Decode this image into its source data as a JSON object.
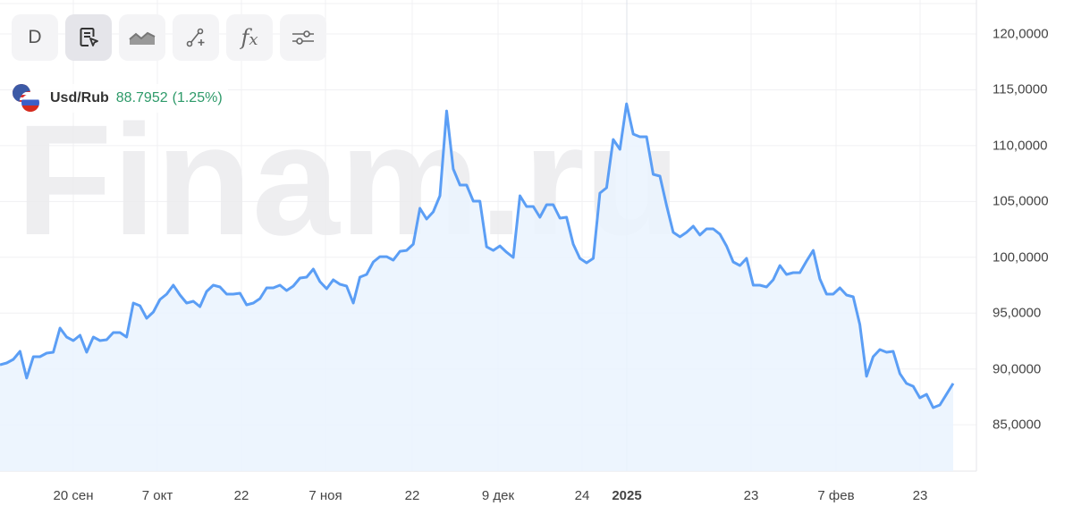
{
  "toolbar": {
    "period_label": "D",
    "buttons": [
      {
        "name": "period",
        "icon": "period-letter"
      },
      {
        "name": "cursor-mode",
        "icon": "document-cursor-icon",
        "selected": true
      },
      {
        "name": "chart-type",
        "icon": "area-chart-icon"
      },
      {
        "name": "drawing-tools",
        "icon": "line-plus-icon"
      },
      {
        "name": "indicators",
        "icon": "fx-icon"
      },
      {
        "name": "settings",
        "icon": "sliders-icon"
      }
    ]
  },
  "legend": {
    "symbol": "Usd/Rub",
    "value": "88.7952",
    "change": "(1.25%)",
    "value_color": "#2e9a6a"
  },
  "watermark": "Finam.ru",
  "colors": {
    "line": "#5b9ef5",
    "fill": "#eaf3fe",
    "grid": "#f0f0f3"
  },
  "chart_data": {
    "type": "area",
    "series": [
      {
        "name": "Usd/Rub",
        "values": [
          90.38,
          90.54,
          90.86,
          91.58,
          89.18,
          91.1,
          91.1,
          91.42,
          91.5,
          93.66,
          92.86,
          92.54,
          93.02,
          91.5,
          92.86,
          92.54,
          92.62,
          93.26,
          93.26,
          92.86,
          95.9,
          95.66,
          94.54,
          95.1,
          96.22,
          96.7,
          97.5,
          96.62,
          95.9,
          96.06,
          95.58,
          96.94,
          97.5,
          97.34,
          96.7,
          96.7,
          96.78,
          95.74,
          95.9,
          96.3,
          97.26,
          97.26,
          97.5,
          97.02,
          97.42,
          98.14,
          98.22,
          98.94,
          97.82,
          97.18,
          97.98,
          97.58,
          97.42,
          95.9,
          98.22,
          98.46,
          99.58,
          100.06,
          100.06,
          99.74,
          100.54,
          100.62,
          101.18,
          104.39,
          103.43,
          104.07,
          105.51,
          113.11,
          107.91,
          106.47,
          106.47,
          105.03,
          105.03,
          100.94,
          100.62,
          101.02,
          100.46,
          99.98,
          105.51,
          104.55,
          104.55,
          103.59,
          104.71,
          104.71,
          103.51,
          103.59,
          101.18,
          99.9,
          99.5,
          99.9,
          105.75,
          106.23,
          110.55,
          109.67,
          113.75,
          111.03,
          110.79,
          110.79,
          107.43,
          107.27,
          104.63,
          102.23,
          101.83,
          102.23,
          102.79,
          101.99,
          102.55,
          102.55,
          102.07,
          101.02,
          99.58,
          99.26,
          99.9,
          97.5,
          97.5,
          97.34,
          97.98,
          99.26,
          98.46,
          98.62,
          98.62,
          99.66,
          100.62,
          98.06,
          96.7,
          96.7,
          97.26,
          96.62,
          96.46,
          93.98,
          89.34,
          91.1,
          91.74,
          91.5,
          91.58,
          89.58,
          88.7,
          88.45,
          87.41,
          87.73,
          86.53,
          86.77,
          87.73,
          88.7
        ]
      }
    ],
    "x_tick_labels": [
      "20 сен",
      "7 окт",
      "22",
      "7 ноя",
      "22",
      "9 дек",
      "24",
      "2025",
      "23",
      "7 фев",
      "23"
    ],
    "y_tick_labels": [
      "120,0000",
      "115,0000",
      "110,0000",
      "105,0000",
      "100,0000",
      "95,0000",
      "90,0000",
      "85,0000"
    ],
    "y_ticks": [
      120,
      115,
      110,
      105,
      100,
      95,
      90,
      85
    ],
    "ylim": [
      81,
      123
    ],
    "grid": true,
    "y_axis_position": "right"
  }
}
